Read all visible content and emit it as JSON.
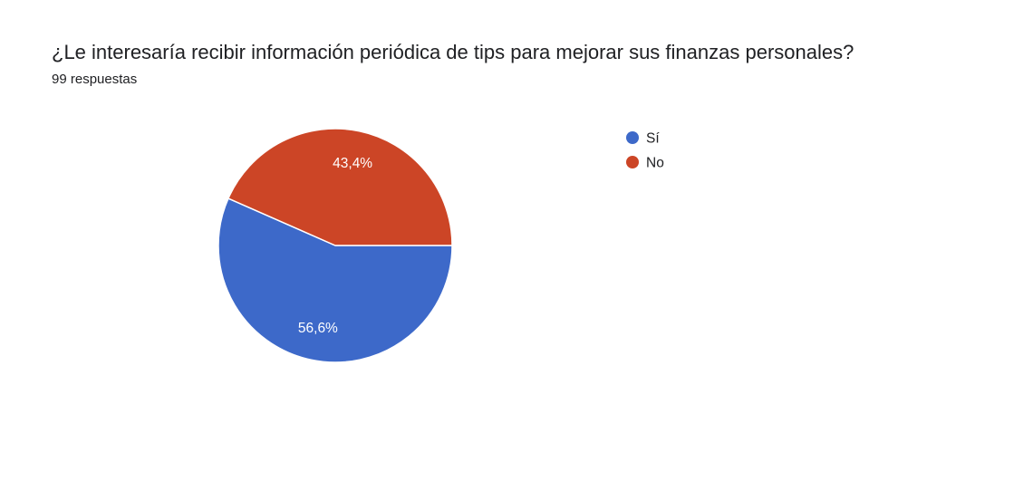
{
  "question": {
    "title": "¿Le interesaría recibir información periódica de tips para mejorar sus finanzas personales?",
    "response_count": "99 respuestas"
  },
  "chart_data": {
    "type": "pie",
    "categories": [
      "Sí",
      "No"
    ],
    "values": [
      56.6,
      43.4
    ],
    "labels": [
      "56,6%",
      "43,4%"
    ],
    "colors": [
      "#3d69c9",
      "#cc4526"
    ],
    "legend_position": "right"
  }
}
